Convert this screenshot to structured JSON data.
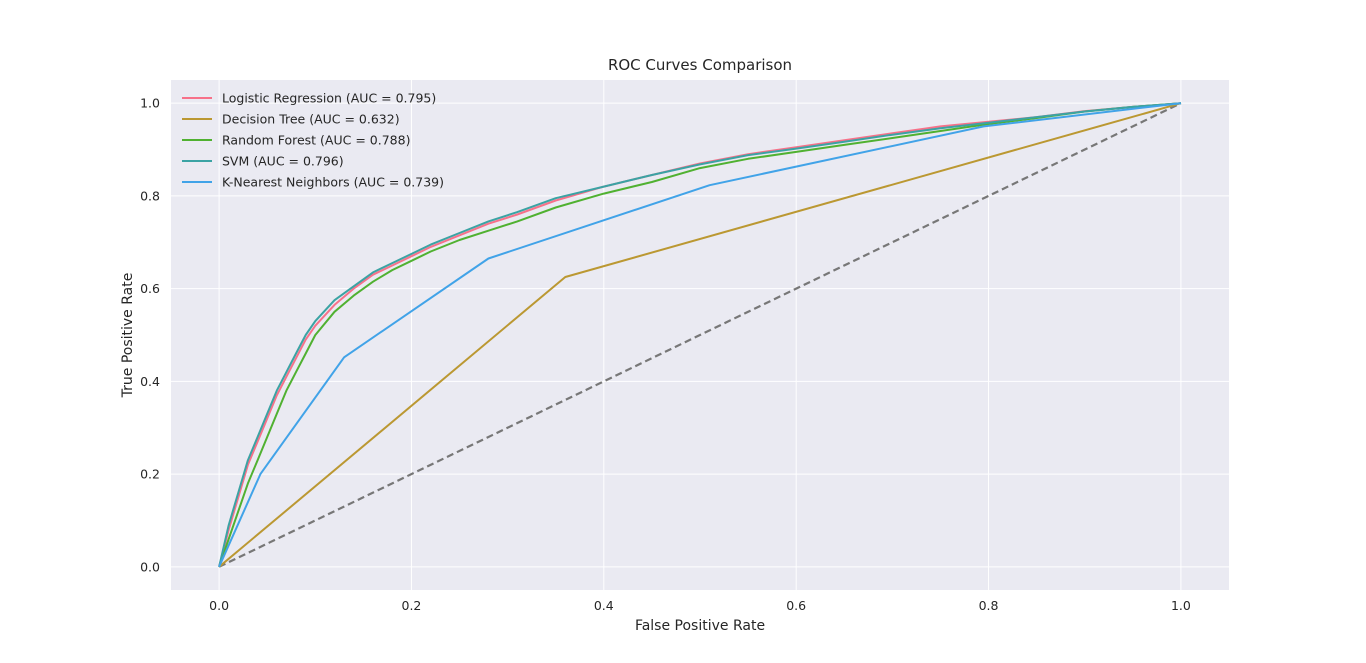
{
  "chart_data": {
    "type": "line",
    "title": "ROC Curves Comparison",
    "xlabel": "False Positive Rate",
    "ylabel": "True Positive Rate",
    "xlim": [
      -0.05,
      1.05
    ],
    "ylim": [
      -0.05,
      1.05
    ],
    "xticks": [
      0.0,
      0.2,
      0.4,
      0.6,
      0.8,
      1.0
    ],
    "yticks": [
      0.0,
      0.2,
      0.4,
      0.6,
      0.8,
      1.0
    ],
    "xtick_labels": [
      "0.0",
      "0.2",
      "0.4",
      "0.6",
      "0.8",
      "1.0"
    ],
    "ytick_labels": [
      "0.0",
      "0.2",
      "0.4",
      "0.6",
      "0.8",
      "1.0"
    ],
    "grid": true,
    "legend_position": "top-left",
    "background": "#eaeaf2",
    "baseline": {
      "x": [
        0,
        1
      ],
      "y": [
        0,
        1
      ],
      "style": "dashed",
      "color": "#777777"
    },
    "series": [
      {
        "name": "Logistic Regression (AUC = 0.795)",
        "color": "#f77189",
        "x": [
          0,
          0.01,
          0.02,
          0.03,
          0.04,
          0.05,
          0.06,
          0.07,
          0.08,
          0.09,
          0.1,
          0.12,
          0.14,
          0.16,
          0.18,
          0.2,
          0.22,
          0.25,
          0.28,
          0.31,
          0.35,
          0.4,
          0.45,
          0.5,
          0.55,
          0.6,
          0.65,
          0.7,
          0.75,
          0.8,
          0.85,
          0.9,
          0.95,
          1.0
        ],
        "y": [
          0,
          0.08,
          0.15,
          0.22,
          0.27,
          0.32,
          0.37,
          0.41,
          0.45,
          0.49,
          0.52,
          0.565,
          0.6,
          0.63,
          0.65,
          0.67,
          0.69,
          0.715,
          0.74,
          0.76,
          0.79,
          0.82,
          0.845,
          0.87,
          0.89,
          0.905,
          0.92,
          0.935,
          0.95,
          0.96,
          0.97,
          0.983,
          0.992,
          1.0
        ]
      },
      {
        "name": "Decision Tree (AUC = 0.632)",
        "color": "#bb9832",
        "x": [
          0,
          0.36,
          1.0
        ],
        "y": [
          0,
          0.625,
          1.0
        ]
      },
      {
        "name": "Random Forest (AUC = 0.788)",
        "color": "#50b131",
        "x": [
          0,
          0.01,
          0.02,
          0.03,
          0.04,
          0.05,
          0.06,
          0.07,
          0.08,
          0.09,
          0.1,
          0.12,
          0.14,
          0.16,
          0.18,
          0.2,
          0.22,
          0.25,
          0.28,
          0.31,
          0.35,
          0.4,
          0.45,
          0.5,
          0.55,
          0.6,
          0.65,
          0.7,
          0.75,
          0.8,
          0.85,
          0.9,
          0.95,
          1.0
        ],
        "y": [
          0,
          0.06,
          0.12,
          0.18,
          0.23,
          0.28,
          0.33,
          0.38,
          0.42,
          0.46,
          0.5,
          0.55,
          0.585,
          0.615,
          0.64,
          0.66,
          0.68,
          0.705,
          0.725,
          0.745,
          0.775,
          0.805,
          0.83,
          0.86,
          0.88,
          0.895,
          0.91,
          0.925,
          0.94,
          0.955,
          0.968,
          0.982,
          0.992,
          1.0
        ]
      },
      {
        "name": "SVM (AUC = 0.796)",
        "color": "#3ba3a4",
        "x": [
          0,
          0.01,
          0.02,
          0.03,
          0.04,
          0.05,
          0.06,
          0.07,
          0.08,
          0.09,
          0.1,
          0.12,
          0.14,
          0.16,
          0.18,
          0.2,
          0.22,
          0.25,
          0.28,
          0.31,
          0.35,
          0.4,
          0.45,
          0.5,
          0.55,
          0.6,
          0.65,
          0.7,
          0.75,
          0.8,
          0.85,
          0.9,
          0.95,
          1.0
        ],
        "y": [
          0,
          0.09,
          0.16,
          0.23,
          0.28,
          0.33,
          0.38,
          0.42,
          0.46,
          0.5,
          0.53,
          0.575,
          0.605,
          0.635,
          0.655,
          0.675,
          0.695,
          0.72,
          0.745,
          0.765,
          0.795,
          0.82,
          0.845,
          0.868,
          0.888,
          0.902,
          0.917,
          0.932,
          0.946,
          0.958,
          0.97,
          0.982,
          0.992,
          1.0
        ]
      },
      {
        "name": "K-Nearest Neighbors (AUC = 0.739)",
        "color": "#41a3e8",
        "x": [
          0,
          0.043,
          0.13,
          0.28,
          0.51,
          0.795,
          1.0
        ],
        "y": [
          0,
          0.2,
          0.452,
          0.665,
          0.823,
          0.95,
          1.0
        ]
      }
    ]
  }
}
